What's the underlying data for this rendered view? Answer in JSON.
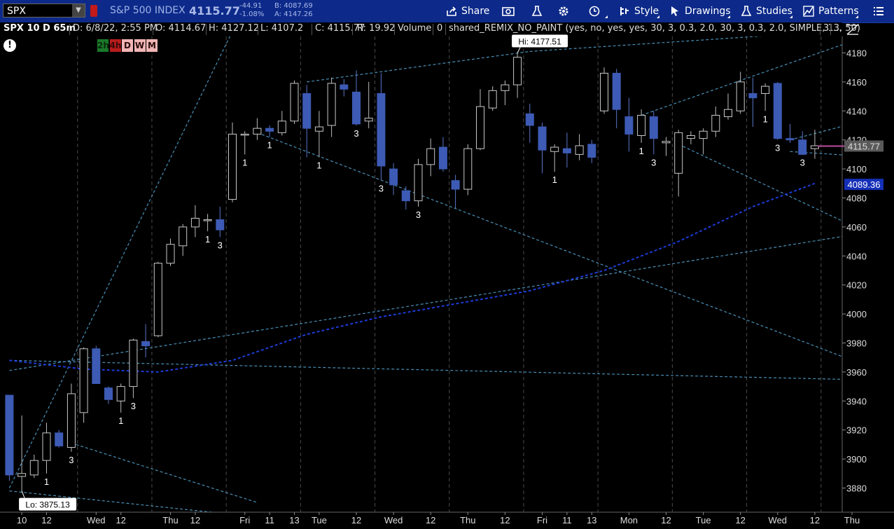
{
  "toolbar": {
    "symbol": "SPX",
    "index_name": "S&P 500 INDEX",
    "last": "4115.77",
    "change": "-44.91",
    "change_pct": "-1.08%",
    "bid": "B: 4087.69",
    "ask": "A: 4147.26",
    "share_label": "Share",
    "style_label": "Style",
    "drawings_label": "Drawings",
    "studies_label": "Studies",
    "patterns_label": "Patterns"
  },
  "infobar": {
    "chart_id": "SPX 10 D 65m",
    "date": "D: 6/8/22, 2:55 PM",
    "open": "O: 4114.67",
    "high": "H: 4127.12",
    "low": "L: 4107.2",
    "close": "C: 4115.77",
    "range": "R: 19.92",
    "volume_label": "Volume",
    "volume_value": "0",
    "study": "shared_REMIX_NO_PAINT (yes, no, yes, yes, 30, 3, 0.3, 2.0, 30, 3, 0.3, 2.0, SIMPLE, 13, 50)",
    "study_value": "3",
    "more": "..."
  },
  "timeframes": [
    "2h",
    "4h",
    "D",
    "W",
    "M"
  ],
  "colors": {
    "up_candle": "#c8c8c8",
    "down_candle": "#3d5bb5",
    "grid": "#4a4a4a",
    "trend": "#4a8fb5",
    "ma": "#1e3bd6",
    "price_marker": "#b84d9e",
    "last_bubble": "#5a5a5a",
    "ma_bubble": "#1530b8"
  },
  "chart_data": {
    "type": "candlestick",
    "y_axis": {
      "min": 3870,
      "max": 4188,
      "ticks": [
        3880,
        3900,
        3920,
        3940,
        3960,
        3980,
        4000,
        4020,
        4040,
        4060,
        4080,
        4100,
        4120,
        4140,
        4160,
        4180
      ]
    },
    "x_labels": [
      "10",
      "12",
      "Wed",
      "12",
      "Thu",
      "12",
      "Fri",
      "11",
      "13",
      "Tue",
      "12",
      "Wed",
      "12",
      "Thu",
      "12",
      "Fri",
      "11",
      "13",
      "Mon",
      "12",
      "Tue",
      "12",
      "Wed",
      "12",
      "Thu"
    ],
    "x_label_bar_index": [
      1,
      3,
      7,
      9,
      13,
      15,
      19,
      21,
      23,
      25,
      28,
      31,
      34,
      37,
      40,
      43,
      45,
      47,
      50,
      53,
      56,
      59,
      62,
      65,
      68
    ],
    "session_breaks": [
      6,
      12,
      18,
      24,
      30,
      36,
      42,
      48,
      54,
      60,
      66
    ],
    "candles": [
      {
        "o": 3944,
        "h": 3944,
        "l": 3885,
        "c": 3889
      },
      {
        "o": 3888,
        "h": 3930,
        "l": 3878,
        "c": 3890
      },
      {
        "o": 3889,
        "h": 3903,
        "l": 3887,
        "c": 3899
      },
      {
        "o": 3899,
        "h": 3925,
        "l": 3890,
        "c": 3918
      },
      {
        "o": 3918,
        "h": 3920,
        "l": 3908,
        "c": 3909
      },
      {
        "o": 3908,
        "h": 3952,
        "l": 3905,
        "c": 3945
      },
      {
        "o": 3932,
        "h": 3977,
        "l": 3925,
        "c": 3976
      },
      {
        "o": 3976,
        "h": 3978,
        "l": 3952,
        "c": 3952
      },
      {
        "o": 3949,
        "h": 3950,
        "l": 3938,
        "c": 3941
      },
      {
        "o": 3940,
        "h": 3952,
        "l": 3932,
        "c": 3950
      },
      {
        "o": 3950,
        "h": 3983,
        "l": 3942,
        "c": 3982
      },
      {
        "o": 3981,
        "h": 3993,
        "l": 3970,
        "c": 3978
      },
      {
        "o": 3985,
        "h": 4036,
        "l": 3984,
        "c": 4035
      },
      {
        "o": 4035,
        "h": 4052,
        "l": 4033,
        "c": 4048
      },
      {
        "o": 4047,
        "h": 4062,
        "l": 4040,
        "c": 4060
      },
      {
        "o": 4060,
        "h": 4075,
        "l": 4053,
        "c": 4066
      },
      {
        "o": 4065,
        "h": 4069,
        "l": 4057,
        "c": 4065
      },
      {
        "o": 4065,
        "h": 4074,
        "l": 4053,
        "c": 4058
      },
      {
        "o": 4079,
        "h": 4132,
        "l": 4077,
        "c": 4124
      },
      {
        "o": 4124,
        "h": 4126,
        "l": 4110,
        "c": 4124
      },
      {
        "o": 4124,
        "h": 4135,
        "l": 4120,
        "c": 4128
      },
      {
        "o": 4128,
        "h": 4130,
        "l": 4122,
        "c": 4126
      },
      {
        "o": 4125,
        "h": 4140,
        "l": 4123,
        "c": 4133
      },
      {
        "o": 4133,
        "h": 4161,
        "l": 4131,
        "c": 4159
      },
      {
        "o": 4152,
        "h": 4158,
        "l": 4108,
        "c": 4128
      },
      {
        "o": 4126,
        "h": 4140,
        "l": 4108,
        "c": 4129
      },
      {
        "o": 4130,
        "h": 4163,
        "l": 4122,
        "c": 4159
      },
      {
        "o": 4158,
        "h": 4162,
        "l": 4150,
        "c": 4155
      },
      {
        "o": 4153,
        "h": 4168,
        "l": 4130,
        "c": 4131
      },
      {
        "o": 4133,
        "h": 4160,
        "l": 4128,
        "c": 4135
      },
      {
        "o": 4152,
        "h": 4166,
        "l": 4092,
        "c": 4102
      },
      {
        "o": 4100,
        "h": 4104,
        "l": 4082,
        "c": 4089
      },
      {
        "o": 4085,
        "h": 4088,
        "l": 4072,
        "c": 4078
      },
      {
        "o": 4078,
        "h": 4107,
        "l": 4074,
        "c": 4103
      },
      {
        "o": 4103,
        "h": 4121,
        "l": 4095,
        "c": 4114
      },
      {
        "o": 4115,
        "h": 4122,
        "l": 4098,
        "c": 4100
      },
      {
        "o": 4092,
        "h": 4096,
        "l": 4073,
        "c": 4086
      },
      {
        "o": 4086,
        "h": 4117,
        "l": 4082,
        "c": 4114
      },
      {
        "o": 4114,
        "h": 4155,
        "l": 4113,
        "c": 4143
      },
      {
        "o": 4142,
        "h": 4157,
        "l": 4140,
        "c": 4154
      },
      {
        "o": 4154,
        "h": 4161,
        "l": 4144,
        "c": 4158
      },
      {
        "o": 4158,
        "h": 4180,
        "l": 4149,
        "c": 4177
      },
      {
        "o": 4138,
        "h": 4145,
        "l": 4118,
        "c": 4130
      },
      {
        "o": 4129,
        "h": 4132,
        "l": 4097,
        "c": 4113
      },
      {
        "o": 4112,
        "h": 4117,
        "l": 4098,
        "c": 4115
      },
      {
        "o": 4114,
        "h": 4125,
        "l": 4101,
        "c": 4111
      },
      {
        "o": 4110,
        "h": 4124,
        "l": 4106,
        "c": 4116
      },
      {
        "o": 4117,
        "h": 4120,
        "l": 4104,
        "c": 4108
      },
      {
        "o": 4140,
        "h": 4170,
        "l": 4138,
        "c": 4166
      },
      {
        "o": 4166,
        "h": 4169,
        "l": 4128,
        "c": 4141
      },
      {
        "o": 4136,
        "h": 4149,
        "l": 4112,
        "c": 4124
      },
      {
        "o": 4123,
        "h": 4141,
        "l": 4118,
        "c": 4137
      },
      {
        "o": 4136,
        "h": 4140,
        "l": 4110,
        "c": 4121
      },
      {
        "o": 4118,
        "h": 4122,
        "l": 4109,
        "c": 4119
      },
      {
        "o": 4097,
        "h": 4127,
        "l": 4081,
        "c": 4125
      },
      {
        "o": 4121,
        "h": 4126,
        "l": 4117,
        "c": 4123
      },
      {
        "o": 4121,
        "h": 4128,
        "l": 4110,
        "c": 4126
      },
      {
        "o": 4126,
        "h": 4143,
        "l": 4122,
        "c": 4137
      },
      {
        "o": 4136,
        "h": 4152,
        "l": 4134,
        "c": 4141
      },
      {
        "o": 4140,
        "h": 4167,
        "l": 4138,
        "c": 4160
      },
      {
        "o": 4152,
        "h": 4163,
        "l": 4129,
        "c": 4149
      },
      {
        "o": 4152,
        "h": 4159,
        "l": 4140,
        "c": 4157
      },
      {
        "o": 4159,
        "h": 4160,
        "l": 4120,
        "c": 4121
      },
      {
        "o": 4121,
        "h": 4131,
        "l": 4118,
        "c": 4120
      },
      {
        "o": 4120,
        "h": 4126,
        "l": 4110,
        "c": 4110
      },
      {
        "o": 4114,
        "h": 4127,
        "l": 4107,
        "c": 4116
      }
    ],
    "count_labels": [
      {
        "bar": 3,
        "text": "1"
      },
      {
        "bar": 5,
        "text": "3"
      },
      {
        "bar": 9,
        "text": "1"
      },
      {
        "bar": 10,
        "text": "3"
      },
      {
        "bar": 16,
        "text": "1"
      },
      {
        "bar": 17,
        "text": "3"
      },
      {
        "bar": 19,
        "text": "1"
      },
      {
        "bar": 21,
        "text": "1"
      },
      {
        "bar": 25,
        "text": "1"
      },
      {
        "bar": 28,
        "text": "3"
      },
      {
        "bar": 30,
        "text": "3"
      },
      {
        "bar": 33,
        "text": "3"
      },
      {
        "bar": 44,
        "text": "1"
      },
      {
        "bar": 51,
        "text": "1"
      },
      {
        "bar": 52,
        "text": "3"
      },
      {
        "bar": 61,
        "text": "1"
      },
      {
        "bar": 62,
        "text": "3"
      },
      {
        "bar": 64,
        "text": "3"
      }
    ],
    "high_label": {
      "bar": 41,
      "text": "Hi: 4177.51"
    },
    "low_label": {
      "bar": 1,
      "text": "Lo: 3875.13"
    },
    "last_price_label": "4115.77",
    "last_price": 4115.77,
    "ma_value_label": "4089.36",
    "ma_value": 4089.36,
    "moving_average": [
      {
        "bar": 0,
        "v": 3968
      },
      {
        "bar": 6,
        "v": 3962
      },
      {
        "bar": 12,
        "v": 3960
      },
      {
        "bar": 18,
        "v": 3968
      },
      {
        "bar": 24,
        "v": 3986
      },
      {
        "bar": 30,
        "v": 3998
      },
      {
        "bar": 36,
        "v": 4007
      },
      {
        "bar": 42,
        "v": 4016
      },
      {
        "bar": 48,
        "v": 4030
      },
      {
        "bar": 54,
        "v": 4050
      },
      {
        "bar": 60,
        "v": 4074
      },
      {
        "bar": 65,
        "v": 4090
      }
    ],
    "trend_lines": [
      {
        "b1": 0,
        "v1": 3961,
        "b2": 72,
        "v2": 4060
      },
      {
        "b1": 0,
        "v1": 3968,
        "b2": 72,
        "v2": 3954
      },
      {
        "b1": 0,
        "v1": 3878,
        "b2": 20,
        "v2": 3860
      },
      {
        "b1": 5,
        "v1": 3911,
        "b2": 20,
        "v2": 3870
      },
      {
        "b1": 20,
        "v1": 4125,
        "b2": 72,
        "v2": 3955
      },
      {
        "b1": 24,
        "v1": 4160,
        "b2": 42,
        "v2": 4181
      },
      {
        "b1": 42,
        "v1": 4181,
        "b2": 72,
        "v2": 4198
      },
      {
        "b1": 51,
        "v1": 4137,
        "b2": 72,
        "v2": 4200
      },
      {
        "b1": 54,
        "v1": 4117,
        "b2": 72,
        "v2": 4045
      },
      {
        "b1": 63,
        "v1": 4112,
        "b2": 72,
        "v2": 4107
      },
      {
        "b1": 63,
        "v1": 4120,
        "b2": 72,
        "v2": 4140
      },
      {
        "b1": 0,
        "v1": 3880,
        "b2": 18,
        "v2": 4195
      }
    ]
  }
}
